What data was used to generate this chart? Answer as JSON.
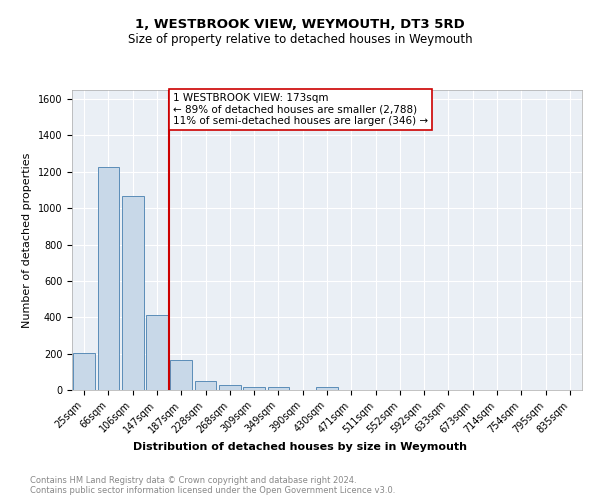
{
  "title": "1, WESTBROOK VIEW, WEYMOUTH, DT3 5RD",
  "subtitle": "Size of property relative to detached houses in Weymouth",
  "xlabel": "Distribution of detached houses by size in Weymouth",
  "ylabel": "Number of detached properties",
  "footer_line1": "Contains HM Land Registry data © Crown copyright and database right 2024.",
  "footer_line2": "Contains public sector information licensed under the Open Government Licence v3.0.",
  "categories": [
    "25sqm",
    "66sqm",
    "106sqm",
    "147sqm",
    "187sqm",
    "228sqm",
    "268sqm",
    "309sqm",
    "349sqm",
    "390sqm",
    "430sqm",
    "471sqm",
    "511sqm",
    "552sqm",
    "592sqm",
    "633sqm",
    "673sqm",
    "714sqm",
    "754sqm",
    "795sqm",
    "835sqm"
  ],
  "values": [
    205,
    1225,
    1065,
    415,
    165,
    48,
    27,
    17,
    16,
    0,
    17,
    0,
    0,
    0,
    0,
    0,
    0,
    0,
    0,
    0,
    0
  ],
  "bar_color": "#c8d8e8",
  "bar_edge_color": "#5b8db8",
  "vline_x_index": 4,
  "vline_color": "#cc0000",
  "ylim": [
    0,
    1650
  ],
  "yticks": [
    0,
    200,
    400,
    600,
    800,
    1000,
    1200,
    1400,
    1600
  ],
  "annotation_line1": "1 WESTBROOK VIEW: 173sqm",
  "annotation_line2": "← 89% of detached houses are smaller (2,788)",
  "annotation_line3": "11% of semi-detached houses are larger (346) →",
  "background_color": "#eaeff5",
  "grid_color": "#ffffff",
  "title_fontsize": 9.5,
  "subtitle_fontsize": 8.5,
  "ylabel_fontsize": 8,
  "xlabel_fontsize": 8,
  "tick_fontsize": 7,
  "annotation_fontsize": 7.5,
  "footer_fontsize": 6
}
